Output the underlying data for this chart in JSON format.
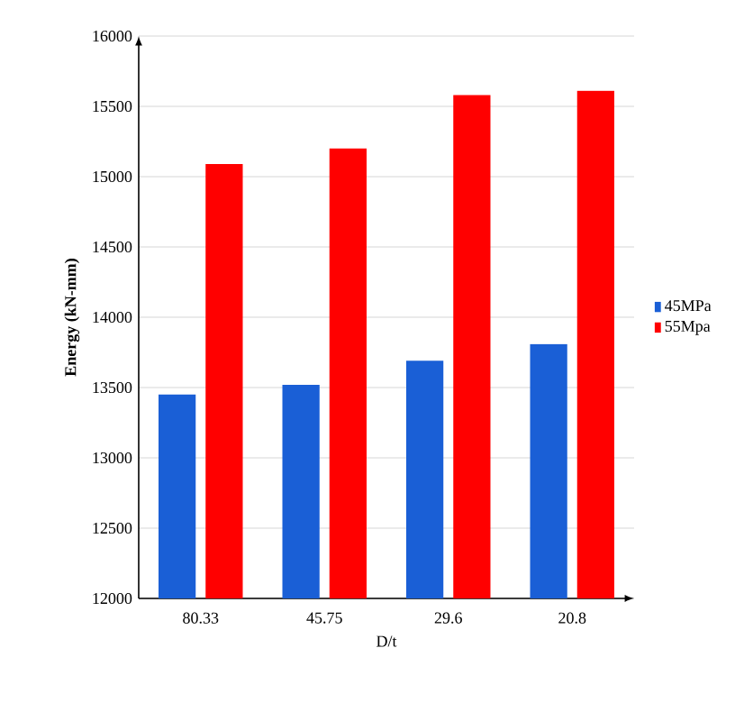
{
  "chart_data": {
    "type": "bar",
    "xlabel": "D/t",
    "ylabel": "Energy (kN-mm)",
    "categories": [
      "80.33",
      "45.75",
      "29.6",
      "20.8"
    ],
    "series": [
      {
        "name": "45MPa",
        "color": "#1a5fd6",
        "values": [
          13450,
          13520,
          13690,
          13810
        ]
      },
      {
        "name": "55Mpa",
        "color": "#ff0000",
        "values": [
          15090,
          15200,
          15580,
          15610
        ]
      }
    ],
    "ylim": [
      12000,
      16000
    ],
    "yticks": [
      12000,
      12500,
      13000,
      13500,
      14000,
      14500,
      15000,
      15500,
      16000
    ],
    "grid": "y",
    "legend": "right"
  }
}
